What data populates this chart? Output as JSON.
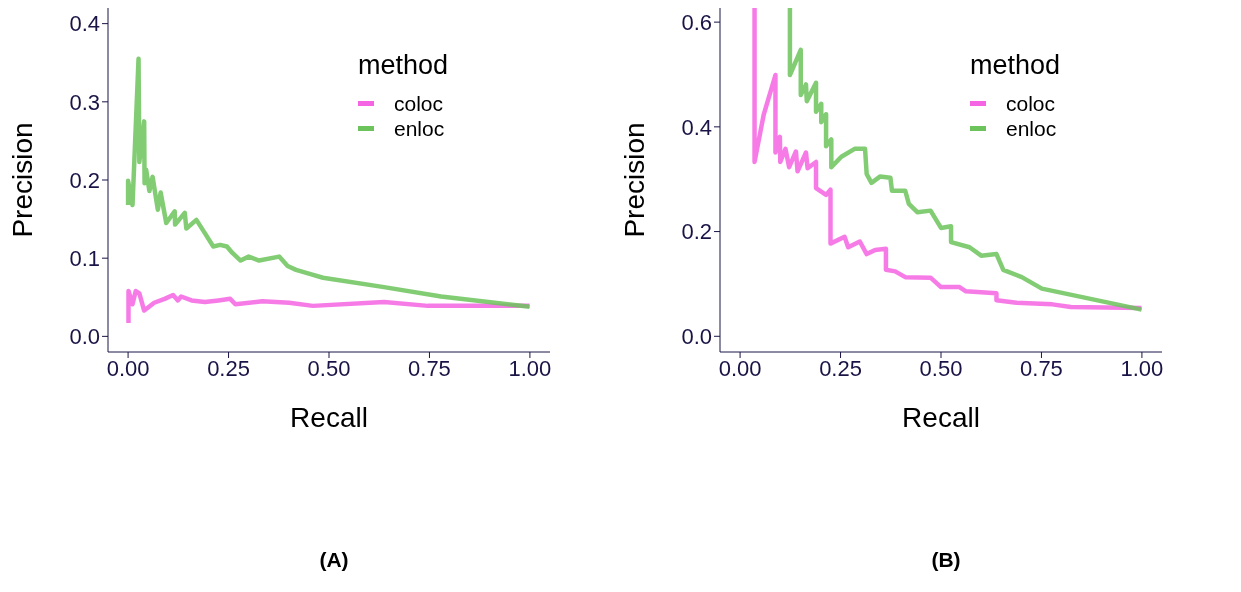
{
  "chart_data": [
    {
      "type": "line",
      "xlabel": "Recall",
      "ylabel": "Precision",
      "legend": "top right",
      "legend_title": "method",
      "annotations": [
        "(A)"
      ],
      "xlim": [
        -0.05,
        1.05
      ],
      "ylim": [
        -0.02,
        0.42
      ],
      "xticks": [
        {
          "value": 0,
          "label": "0.00"
        },
        {
          "value": 0.25,
          "label": "0.25"
        },
        {
          "value": 0.5,
          "label": "0.50"
        },
        {
          "value": 0.75,
          "label": "0.75"
        },
        {
          "value": 1,
          "label": "1.00"
        }
      ],
      "yticks": [
        {
          "value": 0,
          "label": "0.0"
        },
        {
          "value": 0.1,
          "label": "0.1"
        },
        {
          "value": 0.2,
          "label": "0.2"
        },
        {
          "value": 0.3,
          "label": "0.3"
        },
        {
          "value": 0.4,
          "label": "0.4"
        }
      ],
      "series": [
        {
          "name": "coloc",
          "color": "#f564e3",
          "x": [
            0.001,
            0.001,
            0.011,
            0.019,
            0.028,
            0.04,
            0.065,
            0.091,
            0.112,
            0.124,
            0.132,
            0.158,
            0.191,
            0.225,
            0.254,
            0.267,
            0.334,
            0.401,
            0.46,
            0.637,
            0.746,
            0.999
          ],
          "values": [
            0.017,
            0.058,
            0.041,
            0.058,
            0.055,
            0.033,
            0.043,
            0.048,
            0.053,
            0.046,
            0.051,
            0.046,
            0.044,
            0.046,
            0.048,
            0.041,
            0.045,
            0.043,
            0.039,
            0.044,
            0.039,
            0.039
          ]
        },
        {
          "name": "enloc",
          "color": "#6cc35c",
          "x": [
            0.0,
            0.0,
            0.011,
            0.026,
            0.028,
            0.04,
            0.041,
            0.045,
            0.053,
            0.061,
            0.074,
            0.081,
            0.095,
            0.116,
            0.117,
            0.141,
            0.145,
            0.17,
            0.191,
            0.212,
            0.229,
            0.246,
            0.259,
            0.28,
            0.3,
            0.326,
            0.376,
            0.397,
            0.418,
            0.452,
            0.485,
            0.637,
            0.779,
            0.999
          ],
          "values": [
            0.168,
            0.199,
            0.168,
            0.355,
            0.223,
            0.275,
            0.196,
            0.213,
            0.186,
            0.204,
            0.162,
            0.184,
            0.145,
            0.16,
            0.143,
            0.158,
            0.138,
            0.149,
            0.132,
            0.115,
            0.117,
            0.115,
            0.107,
            0.097,
            0.102,
            0.097,
            0.102,
            0.09,
            0.085,
            0.08,
            0.075,
            0.063,
            0.051,
            0.038
          ]
        }
      ]
    },
    {
      "type": "line",
      "xlabel": "Recall",
      "ylabel": "Precision",
      "legend": "top right",
      "legend_title": "method",
      "annotations": [
        "(B)"
      ],
      "xlim": [
        -0.05,
        1.05
      ],
      "ylim": [
        -0.03,
        0.627
      ],
      "xticks": [
        {
          "value": 0,
          "label": "0.00"
        },
        {
          "value": 0.25,
          "label": "0.25"
        },
        {
          "value": 0.5,
          "label": "0.50"
        },
        {
          "value": 0.75,
          "label": "0.75"
        },
        {
          "value": 1,
          "label": "1.00"
        }
      ],
      "yticks": [
        {
          "value": 0,
          "label": "0.0"
        },
        {
          "value": 0.2,
          "label": "0.2"
        },
        {
          "value": 0.4,
          "label": "0.4"
        },
        {
          "value": 0.6,
          "label": "0.6"
        }
      ],
      "series": [
        {
          "name": "coloc",
          "color": "#f564e3",
          "x": [
            0.036,
            0.036,
            0.059,
            0.088,
            0.088,
            0.099,
            0.1,
            0.113,
            0.122,
            0.139,
            0.143,
            0.164,
            0.168,
            0.189,
            0.189,
            0.214,
            0.225,
            0.225,
            0.26,
            0.269,
            0.298,
            0.315,
            0.336,
            0.363,
            0.363,
            0.386,
            0.411,
            0.474,
            0.5,
            0.546,
            0.562,
            0.638,
            0.638,
            0.688,
            0.777,
            0.823,
            0.999
          ],
          "values": [
            0.627,
            0.333,
            0.424,
            0.499,
            0.351,
            0.381,
            0.333,
            0.358,
            0.323,
            0.353,
            0.315,
            0.351,
            0.321,
            0.333,
            0.283,
            0.27,
            0.28,
            0.177,
            0.19,
            0.17,
            0.181,
            0.157,
            0.165,
            0.167,
            0.127,
            0.124,
            0.113,
            0.112,
            0.094,
            0.094,
            0.086,
            0.082,
            0.069,
            0.064,
            0.061,
            0.056,
            0.054
          ]
        },
        {
          "name": "enloc",
          "color": "#6cc35c",
          "x": [
            0.124,
            0.124,
            0.151,
            0.151,
            0.164,
            0.166,
            0.189,
            0.189,
            0.202,
            0.202,
            0.214,
            0.214,
            0.227,
            0.227,
            0.252,
            0.285,
            0.311,
            0.315,
            0.327,
            0.348,
            0.374,
            0.378,
            0.411,
            0.42,
            0.441,
            0.474,
            0.5,
            0.525,
            0.525,
            0.571,
            0.6,
            0.638,
            0.655,
            0.701,
            0.751,
            0.999
          ],
          "values": [
            0.627,
            0.499,
            0.547,
            0.461,
            0.481,
            0.449,
            0.484,
            0.429,
            0.444,
            0.409,
            0.424,
            0.363,
            0.376,
            0.323,
            0.343,
            0.358,
            0.358,
            0.31,
            0.293,
            0.305,
            0.303,
            0.278,
            0.278,
            0.253,
            0.237,
            0.24,
            0.207,
            0.21,
            0.18,
            0.17,
            0.154,
            0.157,
            0.127,
            0.113,
            0.091,
            0.051
          ]
        }
      ]
    }
  ]
}
